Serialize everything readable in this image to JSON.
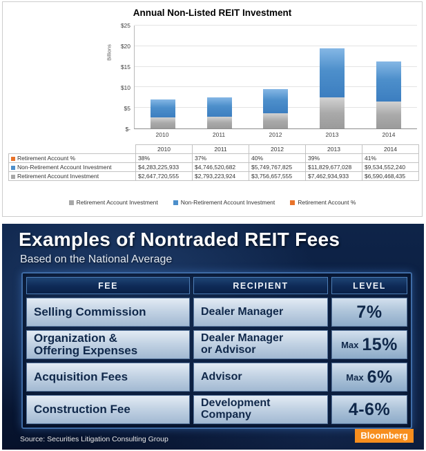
{
  "chart": {
    "title": "Annual Non-Listed REIT Investment",
    "y_axis_label": "Billions",
    "y_ticks": [
      "$25",
      "$20",
      "$15",
      "$10",
      "$5",
      "$-"
    ]
  },
  "chart_data": {
    "type": "bar",
    "stacked": true,
    "title": "Annual Non-Listed REIT Investment",
    "ylabel": "Billions",
    "ylim": [
      0,
      25
    ],
    "grid": true,
    "legend_position": "bottom",
    "categories": [
      "2010",
      "2011",
      "2012",
      "2013",
      "2014"
    ],
    "series": [
      {
        "name": "Retirement Account Investment",
        "color": "#a8a8a8",
        "values": [
          2.647720555,
          2.793223924,
          3.756657555,
          7.462934933,
          6.590468435
        ]
      },
      {
        "name": "Non-Retirement Account Investment",
        "color": "#4d8fcb",
        "values": [
          4.283225933,
          4.746520682,
          5.749767825,
          11.829677028,
          9.53455224
        ]
      },
      {
        "name": "Retirement Account %",
        "color": "#e8732a",
        "values": [
          0.38,
          0.37,
          0.4,
          0.39,
          0.41
        ]
      }
    ]
  },
  "data_table": {
    "col_headers": [
      "2010",
      "2011",
      "2012",
      "2013",
      "2014"
    ],
    "rows": [
      {
        "label": "Retirement Account %",
        "color": "#e8732a",
        "values": [
          "38%",
          "37%",
          "40%",
          "39%",
          "41%"
        ]
      },
      {
        "label": "Non-Retirement Account Investment",
        "color": "#4d8fcb",
        "values": [
          "$4,283,225,933",
          "$4,746,520,682",
          "$5,749,767,825",
          "$11,829,677,028",
          "$9,534,552,240"
        ]
      },
      {
        "label": "Retirement Account Investment",
        "color": "#a8a8a8",
        "values": [
          "$2,647,720,555",
          "$2,793,223,924",
          "$3,756,657,555",
          "$7,462,934,933",
          "$6,590,468,435"
        ]
      }
    ]
  },
  "legend": {
    "items": [
      {
        "label": "Retirement Account Investment",
        "color": "#a8a8a8"
      },
      {
        "label": "Non-Retirement Account Investment",
        "color": "#4d8fcb"
      },
      {
        "label": "Retirement Account %",
        "color": "#e8732a"
      }
    ]
  },
  "fees_panel": {
    "title": "Examples of Nontraded REIT Fees",
    "subtitle": "Based on the National Average",
    "columns": [
      "FEE",
      "RECIPIENT",
      "LEVEL"
    ],
    "rows": [
      {
        "fee": "Selling Commission",
        "recipient": "Dealer Manager",
        "level_prefix": "",
        "level": "7%"
      },
      {
        "fee": "Organization &\nOffering Expenses",
        "recipient": "Dealer Manager\nor Advisor",
        "level_prefix": "Max",
        "level": "15%"
      },
      {
        "fee": "Acquisition Fees",
        "recipient": "Advisor",
        "level_prefix": "Max",
        "level": "6%"
      },
      {
        "fee": "Construction Fee",
        "recipient": "Development\nCompany",
        "level_prefix": "",
        "level": "4-6%"
      }
    ],
    "source": "Source: Securities Litigation Consulting Group",
    "brand": "Bloomberg",
    "brand_color": "#f78e1e"
  }
}
